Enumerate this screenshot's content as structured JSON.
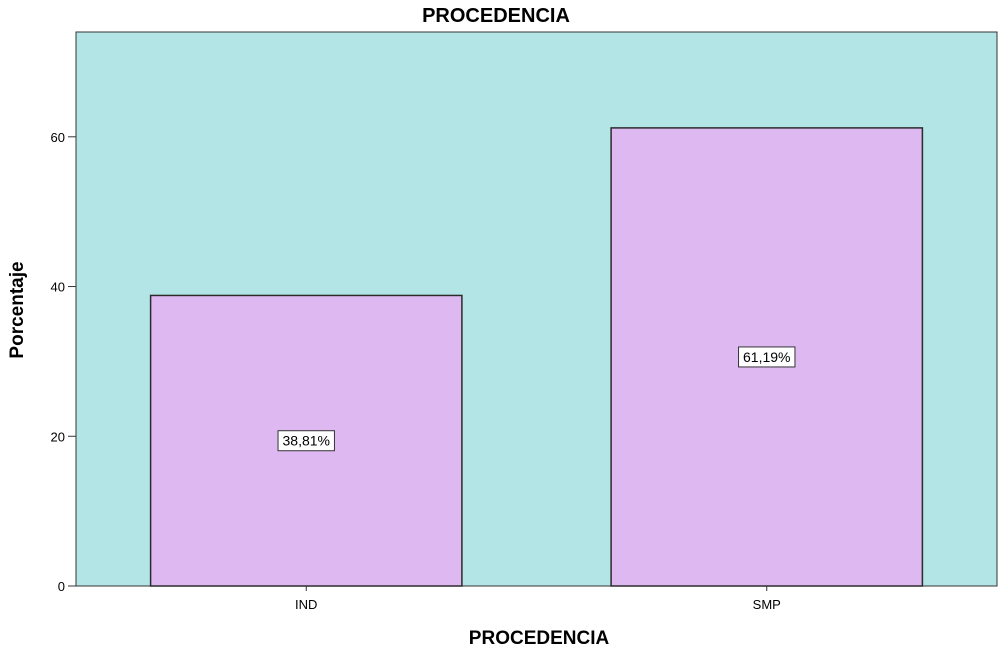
{
  "chart_data": {
    "type": "bar",
    "title": "PROCEDENCIA",
    "xlabel": "PROCEDENCIA",
    "ylabel": "Porcentaje",
    "categories": [
      "IND",
      "SMP"
    ],
    "values": [
      38.81,
      61.19
    ],
    "data_labels": [
      "38,81%",
      "61,19%"
    ],
    "ylim": [
      0,
      74
    ],
    "yticks": [
      0,
      20,
      40,
      60
    ],
    "grid": false,
    "legend": "none",
    "colors": {
      "plot_background": "#b3e5e6",
      "bar_fill": "#deb9f1",
      "bar_stroke": "#2b2b2b",
      "label_box_fill": "#ffffff"
    }
  }
}
